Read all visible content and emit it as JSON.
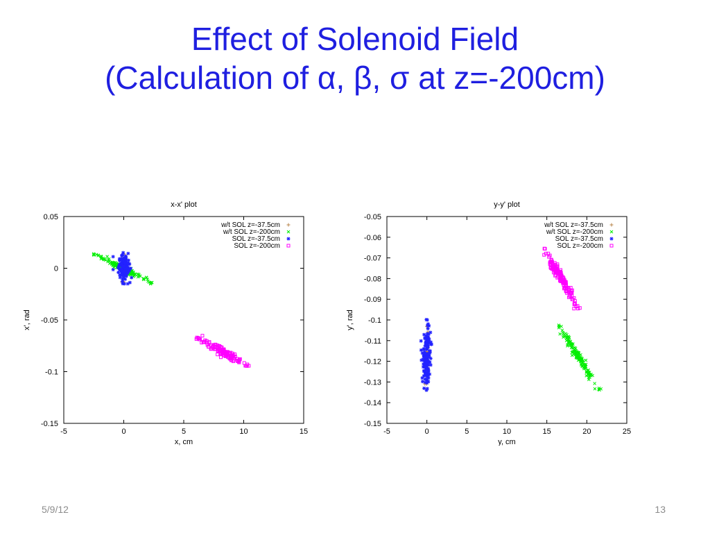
{
  "slide": {
    "title_line1": "Effect of Solenoid Field",
    "title_line2": "(Calculation of α, β, σ at z=-200cm)",
    "date": "5/9/12",
    "page_number": "13"
  },
  "colors": {
    "title": "#1f1fe0",
    "wt_sol_z_37_5": "#b8864b",
    "wt_sol_z_200": "#00ee00",
    "sol_z_37_5": "#2222ff",
    "sol_z_200": "#ff00ff"
  },
  "chart_data": [
    {
      "type": "scatter",
      "title": "x-x' plot",
      "xlabel": "x, cm",
      "ylabel": "x', rad",
      "xlim": [
        -5,
        15
      ],
      "ylim": [
        -0.15,
        0.05
      ],
      "xticks": [
        -5,
        0,
        5,
        10,
        15
      ],
      "xtick_labels": [
        "-5",
        "0",
        "5",
        "10",
        "15"
      ],
      "yticks": [
        0.05,
        0,
        -0.05,
        -0.1,
        -0.15
      ],
      "ytick_labels": [
        "0.05",
        "0",
        "-0.05",
        "-0.1",
        "-0.15"
      ],
      "grid": false,
      "legend_position": "top-right",
      "series": [
        {
          "name": "w/t SOL z=-37.5cm",
          "marker": "+",
          "color": "#b8864b",
          "center": [
            0,
            0
          ],
          "axis_end": [
            0.1,
            0.013
          ],
          "half_width": [
            0.12,
            0.0008
          ],
          "count": 40
        },
        {
          "name": "w/t SOL z=-200cm",
          "marker": "x",
          "color": "#00ee00",
          "center": [
            -0.1,
            0
          ],
          "axis_end": [
            2.3,
            -0.014
          ],
          "half_width": [
            0.15,
            0.0025
          ],
          "count": 130
        },
        {
          "name": "SOL z=-37.5cm",
          "marker": "*",
          "color": "#2222ff",
          "center": [
            0,
            0
          ],
          "axis_end": [
            0.05,
            -0.015
          ],
          "half_width": [
            0.5,
            0.0005
          ],
          "count": 130
        },
        {
          "name": "SOL z=-200cm",
          "marker": "square",
          "color": "#ff00ff",
          "center": [
            8.2,
            -0.08
          ],
          "axis_end": [
            10.3,
            -0.093
          ],
          "half_width": [
            0.2,
            0.004
          ],
          "count": 140
        }
      ]
    },
    {
      "type": "scatter",
      "title": "y-y' plot",
      "xlabel": "y, cm",
      "ylabel": "y', rad",
      "xlim": [
        -5,
        25
      ],
      "ylim": [
        -0.15,
        -0.05
      ],
      "xticks": [
        -5,
        0,
        5,
        10,
        15,
        20,
        25
      ],
      "xtick_labels": [
        "-5",
        "0",
        "5",
        "10",
        "15",
        "20",
        "25"
      ],
      "yticks": [
        -0.05,
        -0.06,
        -0.07,
        -0.08,
        -0.09,
        -0.1,
        -0.11,
        -0.12,
        -0.13,
        -0.14,
        -0.15
      ],
      "ytick_labels": [
        "-0.05",
        "-0.06",
        "-0.07",
        "-0.08",
        "-0.09",
        "-0.1",
        "-0.11",
        "-0.12",
        "-0.13",
        "-0.14",
        "-0.15"
      ],
      "grid": false,
      "legend_position": "top-right",
      "series": [
        {
          "name": "w/t SOL z=-37.5cm",
          "marker": "+",
          "color": "#b8864b",
          "center": [
            0,
            -0.117
          ],
          "axis_end": [
            0.05,
            -0.103
          ],
          "half_width": [
            0.2,
            0.0003
          ],
          "count": 40
        },
        {
          "name": "w/t SOL z=-200cm",
          "marker": "x",
          "color": "#00ee00",
          "center": [
            19,
            -0.118
          ],
          "axis_end": [
            21.5,
            -0.1335
          ],
          "half_width": [
            0.4,
            0.001
          ],
          "count": 140
        },
        {
          "name": "SOL z=-37.5cm",
          "marker": "*",
          "color": "#2222ff",
          "center": [
            0,
            -0.117
          ],
          "axis_end": [
            0.05,
            -0.1
          ],
          "half_width": [
            0.45,
            0.0003
          ],
          "count": 150
        },
        {
          "name": "SOL z=-200cm",
          "marker": "square",
          "color": "#ff00ff",
          "center": [
            16.8,
            -0.08
          ],
          "axis_end": [
            18.9,
            -0.0945
          ],
          "half_width": [
            0.5,
            0.001
          ],
          "count": 150
        }
      ]
    }
  ]
}
